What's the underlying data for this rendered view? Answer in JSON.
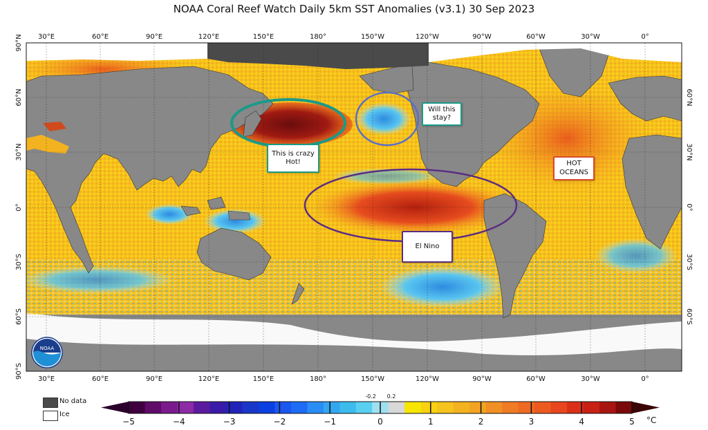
{
  "title": "NOAA Coral Reef Watch Daily 5km SST Anomalies  (v3.1)   30 Sep 2023",
  "lon_ticks": [
    "30°E",
    "60°E",
    "90°E",
    "120°E",
    "150°E",
    "180°",
    "150°W",
    "120°W",
    "90°W",
    "60°W",
    "30°W",
    "0°"
  ],
  "lat_ticks_left": [
    "90°N",
    "60°N",
    "30°N",
    "0°",
    "30°S",
    "60°S",
    "90°S"
  ],
  "lat_ticks_right": [
    "60°N",
    "30°N",
    "0°",
    "30°S",
    "60°S"
  ],
  "annotations": {
    "crazy_hot": "This is crazy\nHot!",
    "will_stay": "Will this\nstay?",
    "hot_oceans": "HOT\nOCEANS",
    "el_nino": "El Nino"
  },
  "annotation_colors": {
    "crazy_hot": "#1a9a88",
    "will_stay": "#1a9a88",
    "hot_oceans": "#d94b2b",
    "el_nino": "#5b2c83",
    "blue_circle": "#5a6fc6"
  },
  "legend": {
    "no_data": "No data",
    "ice": "Ice",
    "no_data_color": "#4a4a4a",
    "ice_color": "#ffffff"
  },
  "colorbar": {
    "ticks": [
      "−5",
      "−4",
      "−3",
      "−2",
      "−1",
      "0",
      "1",
      "2",
      "3",
      "4",
      "5"
    ],
    "minor_labels": [
      "-0.2",
      "0.2"
    ],
    "unit": "°C"
  },
  "logo_text": "NOAA"
}
